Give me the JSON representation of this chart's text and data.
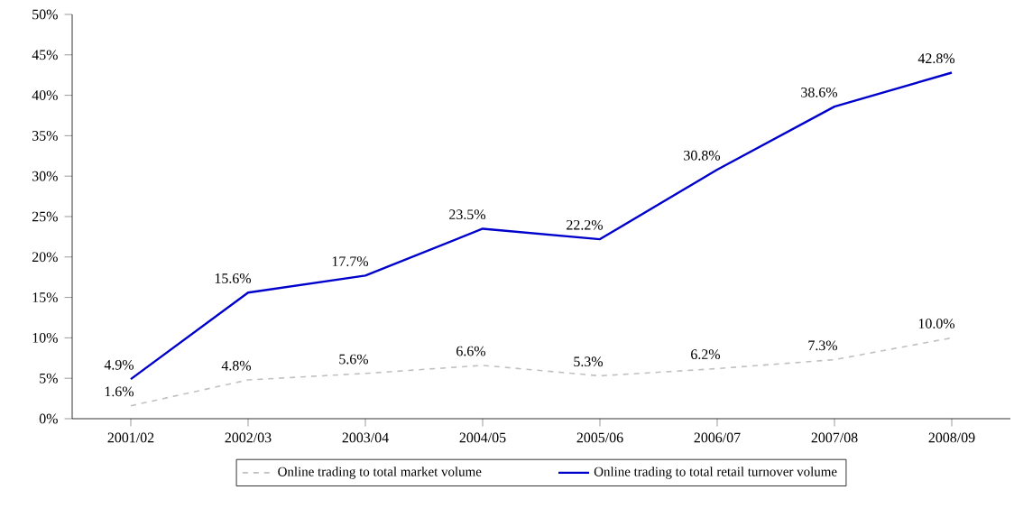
{
  "chart_data": {
    "type": "line",
    "categories": [
      "2001/02",
      "2002/03",
      "2003/04",
      "2004/05",
      "2005/06",
      "2006/07",
      "2007/08",
      "2008/09"
    ],
    "series": [
      {
        "name": "Online trading to total market volume",
        "color": "#c0c0c0",
        "line_style": "dashed",
        "values": [
          1.6,
          4.8,
          5.6,
          6.6,
          5.3,
          6.2,
          7.3,
          10.0
        ],
        "value_labels": [
          "1.6%",
          "4.8%",
          "5.6%",
          "6.6%",
          "5.3%",
          "6.2%",
          "7.3%",
          "10.0%"
        ]
      },
      {
        "name": "Online trading to total retail turnover volume",
        "color": "#0000cc",
        "line_style": "solid",
        "values": [
          4.9,
          15.6,
          17.7,
          23.5,
          22.2,
          30.8,
          38.6,
          42.8
        ],
        "value_labels": [
          "4.9%",
          "15.6%",
          "17.7%",
          "23.5%",
          "22.2%",
          "30.8%",
          "38.6%",
          "42.8%"
        ]
      }
    ],
    "ylim": [
      0,
      50
    ],
    "yticks": [
      {
        "value": 0,
        "label": "0%"
      },
      {
        "value": 5,
        "label": "5%"
      },
      {
        "value": 10,
        "label": "10%"
      },
      {
        "value": 15,
        "label": "15%"
      },
      {
        "value": 20,
        "label": "20%"
      },
      {
        "value": 25,
        "label": "25%"
      },
      {
        "value": 30,
        "label": "30%"
      },
      {
        "value": 35,
        "label": "35%"
      },
      {
        "value": 40,
        "label": "40%"
      },
      {
        "value": 45,
        "label": "45%"
      },
      {
        "value": 50,
        "label": "50%"
      }
    ],
    "legend": "bottom",
    "grid": false,
    "marker": "none"
  }
}
